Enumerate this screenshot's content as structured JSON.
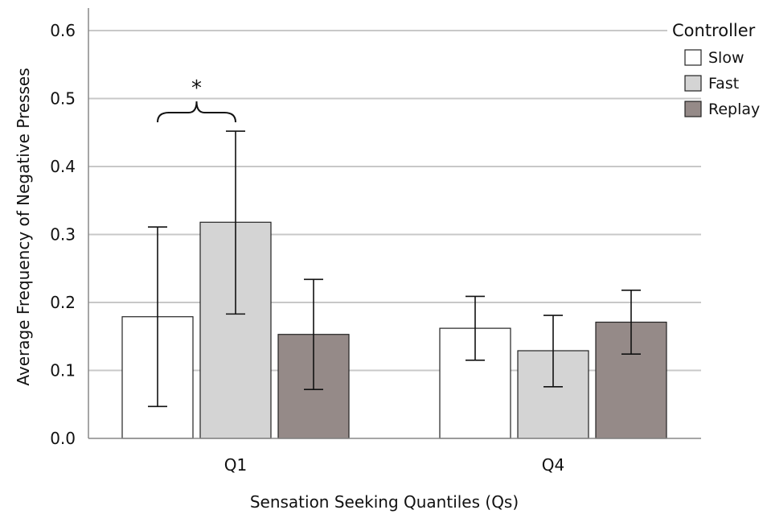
{
  "chart_data": {
    "type": "bar",
    "title": "",
    "xlabel": "Sensation Seeking Quantiles (Qs)",
    "ylabel": "Average Frequency of Negative Presses",
    "ylim": [
      0,
      0.6
    ],
    "yticks": [
      "0.0",
      "0.1",
      "0.2",
      "0.3",
      "0.4",
      "0.5",
      "0.6"
    ],
    "categories": [
      "Q1",
      "Q4"
    ],
    "grid": true,
    "legend": {
      "title": "Controller",
      "placement": "top-right"
    },
    "series": [
      {
        "name": "Slow",
        "color": "#ffffff",
        "values": [
          0.179,
          0.162
        ],
        "err_low": [
          0.047,
          0.115
        ],
        "err_high": [
          0.311,
          0.209
        ]
      },
      {
        "name": "Fast",
        "color": "#d4d4d4",
        "values": [
          0.318,
          0.129
        ],
        "err_low": [
          0.183,
          0.076
        ],
        "err_high": [
          0.452,
          0.181
        ]
      },
      {
        "name": "Replay",
        "color": "#958a88",
        "values": [
          0.153,
          0.171
        ],
        "err_low": [
          0.072,
          0.124
        ],
        "err_high": [
          0.234,
          0.218
        ]
      }
    ],
    "annotations": [
      {
        "text": "*",
        "between": [
          "Slow",
          "Fast"
        ],
        "category": "Q1"
      }
    ]
  }
}
